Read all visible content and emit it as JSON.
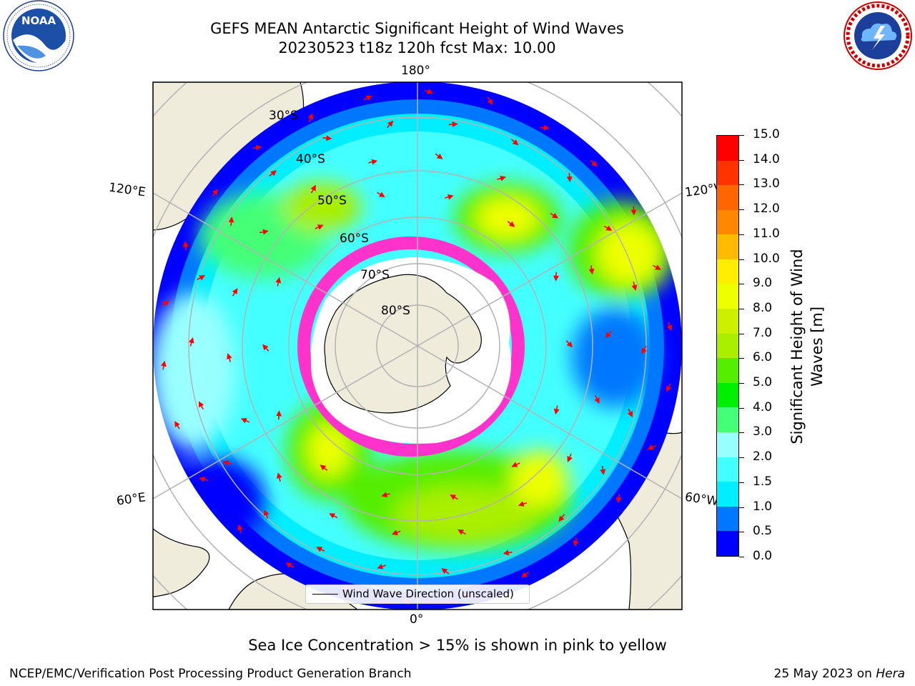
{
  "header": {
    "title_line1": "GEFS MEAN Antarctic Significant Height of Wind Waves",
    "title_line2": "20230523 t18z 120h fcst   Max: 10.00"
  },
  "logos": {
    "left": {
      "name": "NOAA",
      "ring_text": "NATIONAL OCEANIC AND ATMOSPHERIC ADMINISTRATION · U.S. DEPARTMENT OF COMMERCE"
    },
    "right": {
      "name": "NATIONAL WEATHER SERVICE"
    }
  },
  "map": {
    "longitude_labels": {
      "top": "180°",
      "bottom": "0°",
      "left_upper": "120°E",
      "left_lower": "60°E",
      "right_upper": "120°W",
      "right_lower": "60°W"
    },
    "latitude_labels": [
      "30°S",
      "40°S",
      "50°S",
      "60°S",
      "70°S",
      "80°S"
    ],
    "legend": {
      "label": "Wind Wave Direction (unscaled)"
    },
    "colors": {
      "land": "#efecdc",
      "sea_ice": "#ff33cc",
      "arrows": "#ff0000",
      "grid": "#b3b3b3"
    }
  },
  "colorbar": {
    "label_line1": "Significant Height of Wind",
    "label_line2": "Waves [m]",
    "ticks": [
      "0.0",
      "0.5",
      "1.0",
      "1.5",
      "2.0",
      "3.0",
      "4.0",
      "5.0",
      "6.0",
      "7.0",
      "8.0",
      "9.0",
      "10.0",
      "11.0",
      "12.0",
      "13.0",
      "14.0",
      "15.0"
    ],
    "colors": [
      "#0000ff",
      "#0077ff",
      "#00eeff",
      "#44ffff",
      "#99ffff",
      "#44ff77",
      "#00ee00",
      "#55ee00",
      "#aaee00",
      "#ccf000",
      "#eeff00",
      "#ffee00",
      "#ffbb00",
      "#ff8800",
      "#ff6600",
      "#ff3300",
      "#ff0000"
    ]
  },
  "subtitle": "Sea Ice Concentration > 15% is shown in pink to yellow",
  "footer": {
    "left": "NCEP/EMC/Verification Post Processing Product Generation Branch",
    "right_date": "25 May 2023 on ",
    "right_host": "Hera"
  }
}
